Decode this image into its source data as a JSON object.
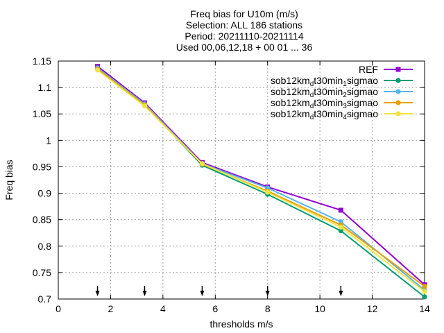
{
  "chart_data": {
    "type": "line",
    "title_lines": [
      "Freq bias  for U10m (m/s)",
      "Selection: ALL     186 stations",
      "Period: 20211110-20211114",
      "Used 00,06,12,18 + 00 01 ... 36"
    ],
    "xlabel": "thresholds m/s",
    "ylabel": "Freq bias",
    "xlim": [
      0,
      14
    ],
    "ylim": [
      0.7,
      1.15
    ],
    "xticks": [
      0,
      2,
      4,
      6,
      8,
      10,
      12,
      14
    ],
    "yticks": [
      0.7,
      0.75,
      0.8,
      0.85,
      0.9,
      0.95,
      1,
      1.05,
      1.1,
      1.15
    ],
    "grid": true,
    "legend_position": "top-right",
    "x": [
      1.5,
      3.3,
      5.5,
      8.0,
      10.8,
      14.0
    ],
    "arrows_at": [
      1.5,
      3.3,
      5.5,
      8.0,
      10.8
    ],
    "series": [
      {
        "name": "REF",
        "label_parts": [
          [
            "REF",
            ""
          ]
        ],
        "color": "#9400d3",
        "marker": "square",
        "values": [
          1.14,
          1.071,
          0.958,
          0.912,
          0.868,
          0.727
        ]
      },
      {
        "name": "sob12km_dt30min_1sigmao",
        "label_parts": [
          [
            "sob12km",
            ""
          ],
          [
            "d",
            "sub"
          ],
          [
            "t30min",
            ""
          ],
          [
            "1",
            "sub"
          ],
          [
            "sigmao",
            ""
          ]
        ],
        "color": "#009e73",
        "marker": "circle",
        "values": [
          1.136,
          1.068,
          0.953,
          0.898,
          0.829,
          0.704
        ]
      },
      {
        "name": "sob12km_dt30min_2sigmao",
        "label_parts": [
          [
            "sob12km",
            ""
          ],
          [
            "d",
            "sub"
          ],
          [
            "t30min",
            ""
          ],
          [
            "2",
            "sub"
          ],
          [
            "sigmao",
            ""
          ]
        ],
        "color": "#56b4e9",
        "marker": "circle",
        "values": [
          1.137,
          1.069,
          0.956,
          0.91,
          0.846,
          0.717
        ]
      },
      {
        "name": "sob12km_dt30min_3sigmao",
        "label_parts": [
          [
            "sob12km",
            ""
          ],
          [
            "d",
            "sub"
          ],
          [
            "t30min",
            ""
          ],
          [
            "3",
            "sub"
          ],
          [
            "sigmao",
            ""
          ]
        ],
        "color": "#e69f00",
        "marker": "circle",
        "values": [
          1.135,
          1.067,
          0.955,
          0.904,
          0.84,
          0.724
        ]
      },
      {
        "name": "sob12km_dt30min_4sigmao",
        "label_parts": [
          [
            "sob12km",
            ""
          ],
          [
            "d",
            "sub"
          ],
          [
            "t30min",
            ""
          ],
          [
            "4",
            "sub"
          ],
          [
            "sigmao",
            ""
          ]
        ],
        "color": "#f0e442",
        "marker": "circle",
        "values": [
          1.133,
          1.065,
          0.956,
          0.902,
          0.836,
          0.714
        ]
      }
    ]
  }
}
